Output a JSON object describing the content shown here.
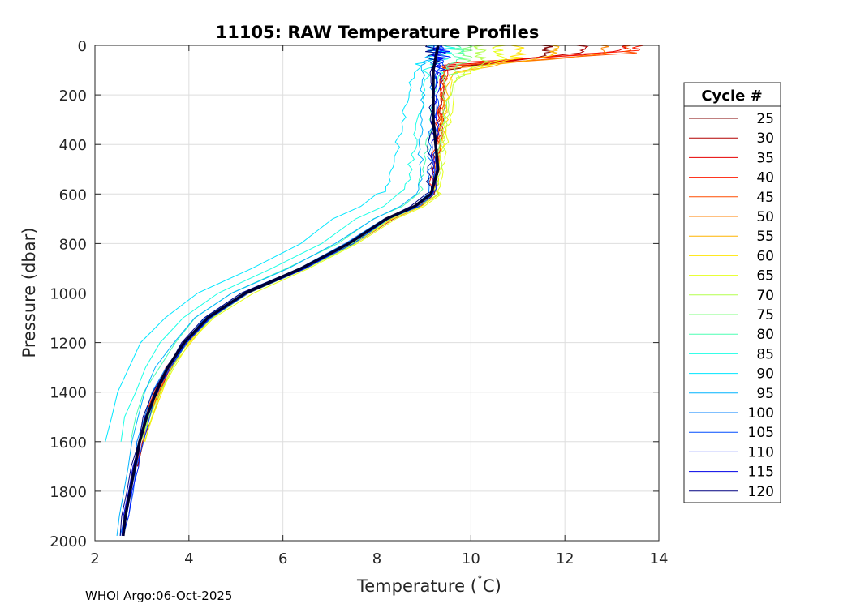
{
  "chart_data": {
    "type": "line",
    "title": "11105: RAW Temperature Profiles",
    "xlabel_main": "Temperature (",
    "xlabel_degree": "˚",
    "xlabel_unit": "C)",
    "ylabel": "Pressure (dbar)",
    "xlim": [
      2,
      14
    ],
    "ylim": [
      0,
      2000
    ],
    "y_reversed": true,
    "grid": true,
    "x_ticks": [
      2,
      4,
      6,
      8,
      10,
      12,
      14
    ],
    "y_ticks": [
      0,
      200,
      400,
      600,
      800,
      1000,
      1200,
      1400,
      1600,
      1800,
      2000
    ],
    "legend_title": "Cycle #",
    "legend_placement": "outside-right",
    "footnote": "WHOI Argo:06-Oct-2025",
    "series": [
      {
        "name": "25",
        "color": "#800000",
        "mixed_layer_temp": 11.6,
        "mld": 40,
        "thermocline_bottom": 100,
        "deep_temp": 9.4,
        "bend_temp": 9.2,
        "bottom_pressure": 1700
      },
      {
        "name": "30",
        "color": "#b20000",
        "mixed_layer_temp": 12.4,
        "mld": 30,
        "thermocline_bottom": 90,
        "deep_temp": 9.45,
        "bend_temp": 9.25,
        "bottom_pressure": 1700
      },
      {
        "name": "35",
        "color": "#e60000",
        "mixed_layer_temp": 13.2,
        "mld": 25,
        "thermocline_bottom": 80,
        "deep_temp": 9.5,
        "bend_temp": 9.2,
        "bottom_pressure": 1690
      },
      {
        "name": "40",
        "color": "#ff1a00",
        "mixed_layer_temp": 13.6,
        "mld": 20,
        "thermocline_bottom": 75,
        "deep_temp": 9.4,
        "bend_temp": 9.15,
        "bottom_pressure": 1700
      },
      {
        "name": "45",
        "color": "#ff4d00",
        "mixed_layer_temp": 13.4,
        "mld": 30,
        "thermocline_bottom": 85,
        "deep_temp": 9.45,
        "bend_temp": 9.2,
        "bottom_pressure": 1700
      },
      {
        "name": "50",
        "color": "#ff8000",
        "mixed_layer_temp": 12.8,
        "mld": 35,
        "thermocline_bottom": 95,
        "deep_temp": 9.5,
        "bend_temp": 9.2,
        "bottom_pressure": 1690
      },
      {
        "name": "55",
        "color": "#ffb300",
        "mixed_layer_temp": 11.8,
        "mld": 40,
        "thermocline_bottom": 110,
        "deep_temp": 9.55,
        "bend_temp": 9.2,
        "bottom_pressure": 1690
      },
      {
        "name": "60",
        "color": "#ffe600",
        "mixed_layer_temp": 11.0,
        "mld": 50,
        "thermocline_bottom": 120,
        "deep_temp": 9.6,
        "bend_temp": 9.25,
        "bottom_pressure": 1690
      },
      {
        "name": "65",
        "color": "#e6ff1a",
        "mixed_layer_temp": 10.6,
        "mld": 60,
        "thermocline_bottom": 130,
        "deep_temp": 9.7,
        "bend_temp": 9.3,
        "bottom_pressure": 1680
      },
      {
        "name": "70",
        "color": "#b3ff4d",
        "mixed_layer_temp": 10.2,
        "mld": 70,
        "thermocline_bottom": 140,
        "deep_temp": 9.6,
        "bend_temp": 9.25,
        "bottom_pressure": 1680
      },
      {
        "name": "75",
        "color": "#80ff80",
        "mixed_layer_temp": 9.9,
        "mld": 60,
        "thermocline_bottom": 130,
        "deep_temp": 9.5,
        "bend_temp": 9.2,
        "bottom_pressure": 1670
      },
      {
        "name": "80",
        "color": "#4dffb3",
        "mixed_layer_temp": 9.7,
        "mld": 50,
        "thermocline_bottom": 120,
        "deep_temp": 9.3,
        "bend_temp": 8.9,
        "bottom_pressure": 1660
      },
      {
        "name": "85",
        "color": "#1affe6",
        "mixed_layer_temp": 9.5,
        "mld": 40,
        "thermocline_bottom": 100,
        "deep_temp": 9.1,
        "bend_temp": 8.6,
        "bottom_pressure": 1650
      },
      {
        "name": "90",
        "color": "#00e6ff",
        "mixed_layer_temp": 9.3,
        "mld": 30,
        "thermocline_bottom": 90,
        "deep_temp": 8.8,
        "bend_temp": 8.2,
        "bottom_pressure": 1650
      },
      {
        "name": "95",
        "color": "#00b3ff",
        "mixed_layer_temp": 9.2,
        "mld": 30,
        "thermocline_bottom": 80,
        "deep_temp": 9.0,
        "bend_temp": 8.9,
        "bottom_pressure": 1980
      },
      {
        "name": "100",
        "color": "#0080ff",
        "mixed_layer_temp": 9.25,
        "mld": 40,
        "thermocline_bottom": 90,
        "deep_temp": 9.2,
        "bend_temp": 9.1,
        "bottom_pressure": 1980
      },
      {
        "name": "105",
        "color": "#004dff",
        "mixed_layer_temp": 9.3,
        "mld": 50,
        "thermocline_bottom": 100,
        "deep_temp": 9.3,
        "bend_temp": 9.2,
        "bottom_pressure": 1980
      },
      {
        "name": "110",
        "color": "#001aff",
        "mixed_layer_temp": 9.4,
        "mld": 60,
        "thermocline_bottom": 120,
        "deep_temp": 9.35,
        "bend_temp": 9.2,
        "bottom_pressure": 1980
      },
      {
        "name": "115",
        "color": "#0000e6",
        "mixed_layer_temp": 9.3,
        "mld": 40,
        "thermocline_bottom": 90,
        "deep_temp": 9.25,
        "bend_temp": 9.15,
        "bottom_pressure": 1980
      },
      {
        "name": "120",
        "color": "#000080",
        "mixed_layer_temp": 9.2,
        "mld": 30,
        "thermocline_bottom": 70,
        "deep_temp": 9.2,
        "bend_temp": 9.1,
        "bottom_pressure": 1980
      }
    ],
    "mean_profile": {
      "name": "mean",
      "color": "#000033",
      "pressure": [
        0,
        100,
        200,
        300,
        400,
        500,
        600,
        650,
        700,
        800,
        900,
        1000,
        1100,
        1200,
        1300,
        1400,
        1500,
        1600,
        1700,
        1800,
        1900,
        1980
      ],
      "temperature": [
        9.3,
        9.2,
        9.2,
        9.2,
        9.25,
        9.3,
        9.15,
        8.8,
        8.2,
        7.4,
        6.4,
        5.2,
        4.4,
        3.9,
        3.55,
        3.3,
        3.1,
        2.95,
        2.85,
        2.75,
        2.65,
        2.6
      ]
    }
  }
}
